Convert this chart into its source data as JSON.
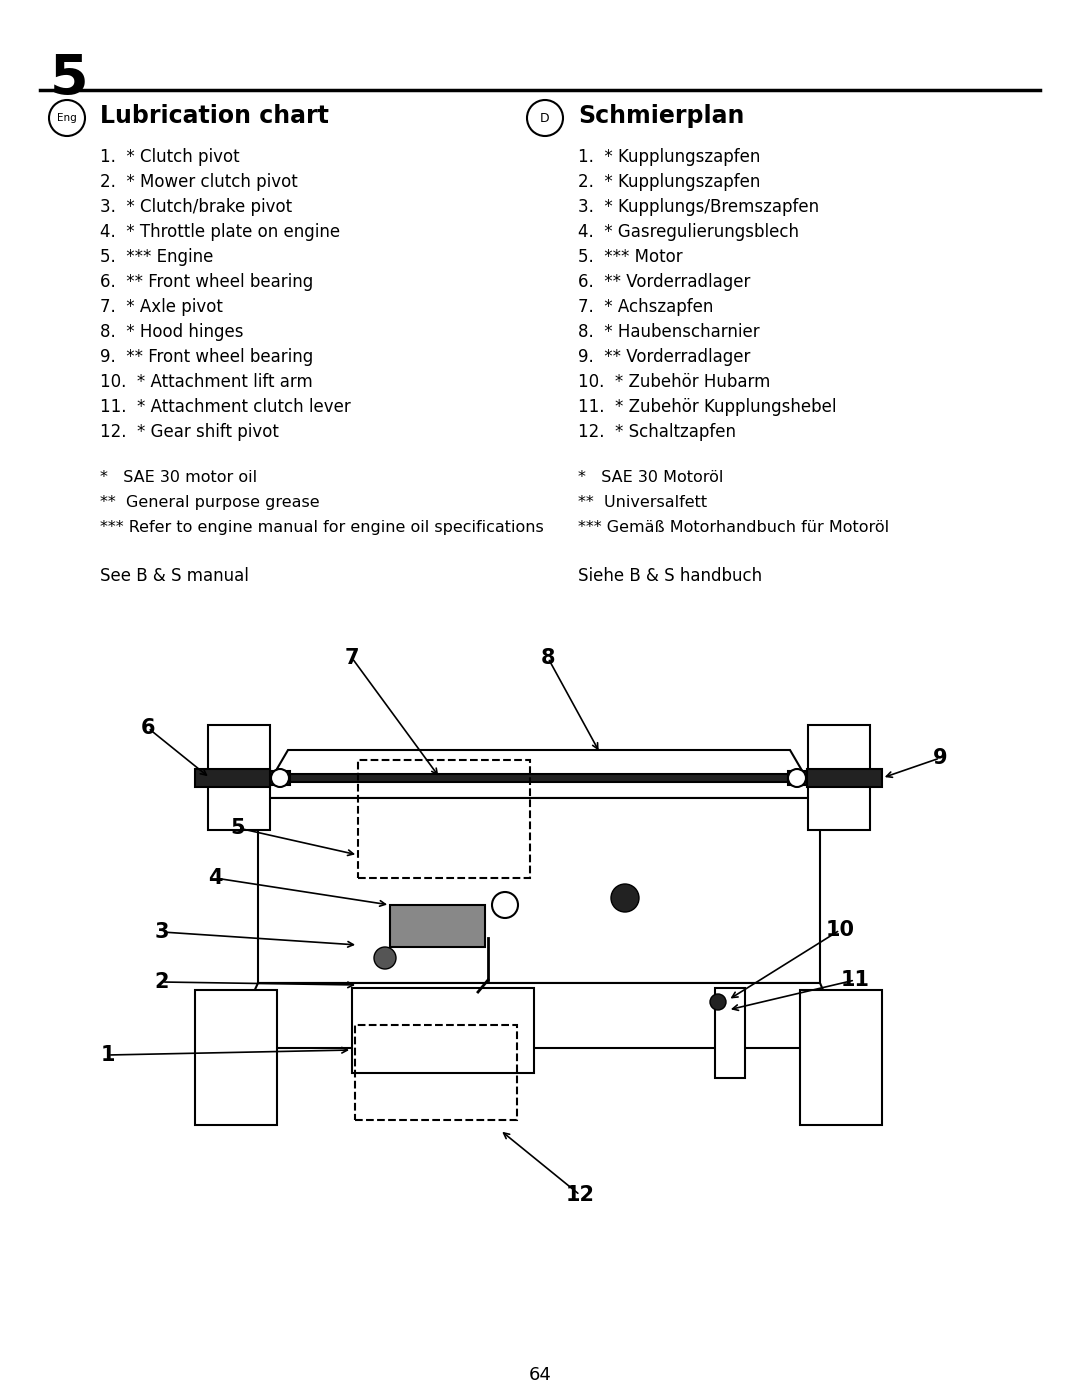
{
  "page_number": "5",
  "page_num_bottom": "64",
  "bg_color": "#ffffff",
  "text_color": "#000000",
  "eng_title": "Lubrication chart",
  "de_title": "Schmierplan",
  "eng_items": [
    "1.  * Clutch pivot",
    "2.  * Mower clutch pivot",
    "3.  * Clutch/brake pivot",
    "4.  * Throttle plate on engine",
    "5.  *** Engine",
    "6.  ** Front wheel bearing",
    "7.  * Axle pivot",
    "8.  * Hood hinges",
    "9.  ** Front wheel bearing",
    "10.  * Attachment lift arm",
    "11.  * Attachment clutch lever",
    "12.  * Gear shift pivot"
  ],
  "de_items": [
    "1.  * Kupplungszapfen",
    "2.  * Kupplungszapfen",
    "3.  * Kupplungs/Bremszapfen",
    "4.  * Gasregulierungsblech",
    "5.  *** Motor",
    "6.  ** Vorderradlager",
    "7.  * Achszapfen",
    "8.  * Haubenscharnier",
    "9.  ** Vorderradlager",
    "10.  * Zubehör Hubarm",
    "11.  * Zubehör Kupplungshebel",
    "12.  * Schaltzapfen"
  ],
  "eng_footnotes": [
    "*   SAE 30 motor oil",
    "**  General purpose grease",
    "*** Refer to engine manual for engine oil specifications"
  ],
  "de_footnotes": [
    "*   SAE 30 Motoröl",
    "**  Universalfett",
    "*** Gemäß Motorhandbuch für Motoröl"
  ],
  "eng_see": "See B & S manual",
  "de_see": "Siehe B & S handbuch"
}
